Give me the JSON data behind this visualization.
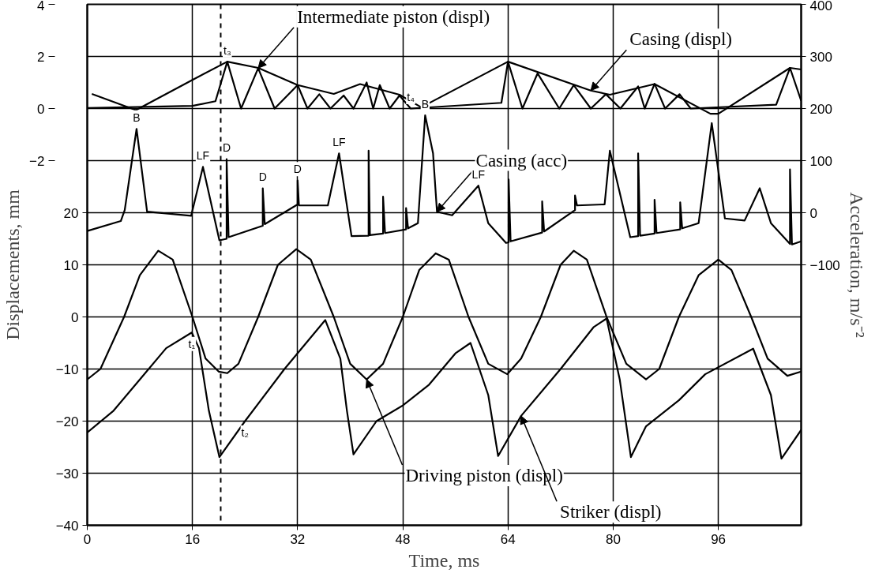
{
  "chart_data": {
    "type": "line",
    "xlabel": "Time, ms",
    "ylabel": "Displacements, mm",
    "y2label": "Acceleration, m/s⁻²",
    "xlim": [
      0,
      108.6
    ],
    "xticks": [
      0,
      16,
      32,
      48,
      64,
      80,
      96
    ],
    "ylim": [
      -40,
      60
    ],
    "yticks": [
      -40,
      -30,
      -20,
      -10,
      0,
      10,
      20
    ],
    "y3lim": [
      -16,
      4
    ],
    "y3ticks": [
      -2,
      0,
      2,
      4
    ],
    "y2lim": [
      -600,
      400
    ],
    "y2ticks": [
      -100,
      0,
      100,
      200,
      300,
      400
    ],
    "grid": true,
    "line_style": "solid",
    "marker": "none",
    "series": [
      {
        "axis": "y3",
        "color": "#000000",
        "x": [
          0.7,
          7.4,
          16,
          21.3,
          26,
          32,
          37.5,
          41.5,
          47.5,
          50.8,
          64,
          76.6,
          79.5,
          86.3,
          94.8,
          96,
          106.9,
          108.6
        ],
        "values": [
          0.56,
          -0.06,
          1.1,
          1.8,
          1.56,
          0.9,
          0.56,
          0.94,
          0.53,
          0.05,
          1.8,
          0.69,
          0.53,
          0.94,
          -0.2,
          -0.2,
          1.56,
          1.5
        ]
      },
      {
        "axis": "y3",
        "color": "#000000",
        "x": [
          0,
          16,
          19.5,
          21.3,
          23.4,
          26,
          28.5,
          32,
          33.5,
          35.3,
          37,
          39,
          40.5,
          42.5,
          43.5,
          44.5,
          46,
          47.5,
          49.2,
          63,
          64,
          66.2,
          68.5,
          71.8,
          74,
          76.6,
          78.9,
          81.1,
          83.8,
          84.8,
          86.3,
          87.9,
          90.1,
          91.8,
          104.8,
          106.9,
          108.6
        ],
        "values": [
          0.02,
          0.1,
          0.28,
          1.8,
          0,
          1.55,
          0,
          0.9,
          0,
          0.55,
          0,
          0.5,
          0,
          1.0,
          0,
          0.9,
          0,
          0.5,
          0,
          0.22,
          1.8,
          0,
          1.35,
          0,
          0.9,
          0,
          0.55,
          0,
          0.85,
          0,
          0.95,
          0,
          0.55,
          0,
          0.15,
          1.56,
          0.3
        ]
      },
      {
        "axis": "y2",
        "color": "#000000",
        "x": [
          0,
          5.1,
          5.7,
          7.5,
          9.1,
          15.8,
          17.6,
          20.1,
          21.2,
          21.2,
          21.5,
          26.7,
          26.7,
          27,
          32,
          32,
          32.2,
          36.6,
          38.3,
          40.2,
          42.8,
          42.8,
          43,
          45,
          45,
          45.3,
          48.5,
          48.5,
          48.8,
          50.3,
          51.4,
          52.6,
          53.2,
          55.5,
          59.5,
          61,
          63.7,
          64.1,
          64.1,
          64.4,
          69.2,
          69.2,
          69.5,
          74.2,
          74.2,
          74.5,
          78.7,
          79.5,
          82.6,
          83.8,
          83.8,
          84.1,
          86.3,
          86.3,
          86.6,
          90.2,
          90.2,
          90.5,
          93,
          95,
          97,
          100,
          102.3,
          104,
          106.9,
          106.9,
          107.2,
          108.6
        ],
        "values": [
          -35,
          -16,
          5,
          161,
          2,
          -6,
          88,
          -53,
          -50,
          103,
          -47,
          -25,
          47,
          -22,
          16,
          62,
          14,
          14,
          114,
          -45,
          -44,
          119,
          -43,
          -40,
          31,
          -39,
          -32,
          9,
          -30,
          -20,
          187,
          114,
          2,
          -5,
          52,
          -20,
          -58,
          -57,
          64,
          -55,
          -38,
          22,
          -36,
          5,
          33,
          14,
          16,
          119,
          -47,
          -45,
          114,
          -44,
          -40,
          25,
          -39,
          -32,
          20,
          -30,
          -20,
          172,
          -11,
          -15,
          47,
          -20,
          -60,
          83,
          -61,
          -55
        ]
      },
      {
        "axis": "y",
        "color": "#000000",
        "x": [
          0,
          2,
          5.6,
          8,
          10.8,
          13,
          16,
          18,
          20,
          21.3,
          23,
          26,
          29,
          31.8,
          34,
          37.5,
          40,
          42.5,
          45,
          48,
          50.5,
          53,
          55,
          58,
          61,
          63.9,
          66,
          69,
          72,
          74,
          76,
          79,
          82,
          85,
          87,
          90,
          93,
          96,
          98,
          101,
          103.5,
          106.5,
          108.6
        ],
        "values": [
          -12,
          -10,
          0,
          8,
          12.7,
          11,
          0,
          -8,
          -10.5,
          -10.8,
          -9,
          0,
          10,
          13,
          11,
          0,
          -9,
          -12,
          -9,
          0,
          9,
          12.2,
          11,
          0,
          -9,
          -11,
          -8,
          0,
          10,
          12.7,
          11,
          0,
          -9,
          -12,
          -10,
          0,
          8,
          11,
          9,
          0,
          -8,
          -11.3,
          -10.5
        ]
      },
      {
        "axis": "y",
        "color": "#000000",
        "x": [
          0,
          4,
          8,
          12,
          15.9,
          17,
          18.5,
          20.1,
          24,
          30,
          36.2,
          38.5,
          39.5,
          40.5,
          44,
          48,
          52,
          56,
          58.3,
          61,
          62.5,
          66,
          72,
          77,
          79,
          81,
          82.7,
          85,
          90,
          94,
          101.3,
          104,
          105.6,
          108.6
        ],
        "values": [
          -22.2,
          -18,
          -12,
          -6,
          -3,
          -6,
          -18,
          -26.9,
          -20,
          -10,
          -0.6,
          -8,
          -18,
          -26.4,
          -20,
          -17,
          -13,
          -7,
          -5,
          -15,
          -26.7,
          -19,
          -10,
          -2,
          -0.3,
          -12,
          -26.9,
          -21,
          -16,
          -11,
          -6.1,
          -15,
          -27.2,
          -21.7
        ]
      }
    ],
    "ref_lines": [
      {
        "axis": "x",
        "value": 20.3,
        "line_style": "dashed",
        "color": "#000000"
      }
    ],
    "annotations": [
      {
        "text": "Intermediate piston (displ)",
        "x": 26,
        "y": 47.75
      },
      {
        "text": "Casing (displ)",
        "x": 76.6,
        "y": 43.45
      },
      {
        "text": "Casing (acc)",
        "x": 53.2,
        "y": 20.2
      },
      {
        "text": "Driving piston (displ)",
        "x": 42.5,
        "y": -12
      },
      {
        "text": "Striker (displ)",
        "x": 66,
        "y": -19
      },
      {
        "text": "t₁",
        "x": 15.9,
        "y": -3
      },
      {
        "text": "t₂",
        "x": 24,
        "y": -20
      },
      {
        "text": "t₃",
        "x": 21.3,
        "y": 49
      },
      {
        "text": "t₄",
        "x": 49.2,
        "y": 40
      },
      {
        "text": "B",
        "x": 7.5,
        "y": 36.1
      },
      {
        "text": "B",
        "x": 51.4,
        "y": 38.7
      },
      {
        "text": "LF",
        "x": 17.6,
        "y": 28.8
      },
      {
        "text": "LF",
        "x": 38.3,
        "y": 31.4
      },
      {
        "text": "LF",
        "x": 59.5,
        "y": 25.2
      },
      {
        "text": "D",
        "x": 21.2,
        "y": 30.3
      },
      {
        "text": "D",
        "x": 26.7,
        "y": 24.7
      },
      {
        "text": "D",
        "x": 32,
        "y": 26.2
      }
    ]
  }
}
